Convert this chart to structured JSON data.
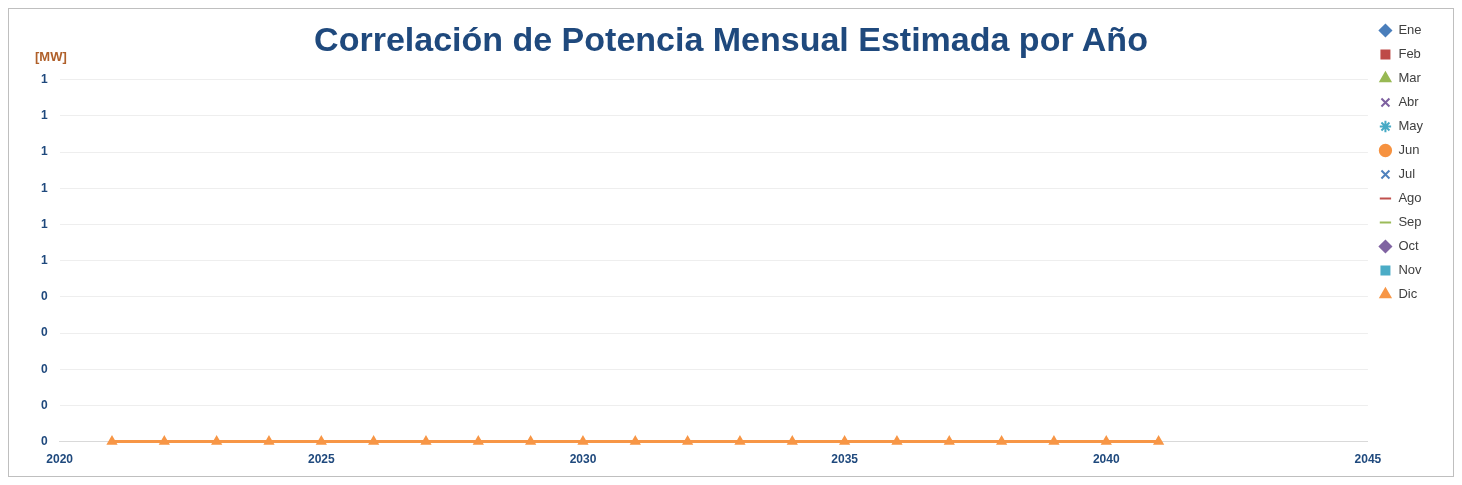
{
  "chart_data": {
    "type": "line",
    "title": "Correlación de Potencia Mensual Estimada por Año",
    "ylabel": "[MW]",
    "x": [
      2021,
      2022,
      2023,
      2024,
      2025,
      2026,
      2027,
      2028,
      2029,
      2030,
      2031,
      2032,
      2033,
      2034,
      2035,
      2036,
      2037,
      2038,
      2039,
      2040,
      2041
    ],
    "xlim": [
      2020,
      2045
    ],
    "xticks": [
      2020,
      2025,
      2030,
      2035,
      2040,
      2045
    ],
    "ylim": [
      0,
      1
    ],
    "yticks": [
      {
        "value": 0,
        "label": "0"
      },
      {
        "value": 0.1,
        "label": "0"
      },
      {
        "value": 0.2,
        "label": "0"
      },
      {
        "value": 0.3,
        "label": "0"
      },
      {
        "value": 0.4,
        "label": "0"
      },
      {
        "value": 0.5,
        "label": "1"
      },
      {
        "value": 0.6,
        "label": "1"
      },
      {
        "value": 0.7,
        "label": "1"
      },
      {
        "value": 0.8,
        "label": "1"
      },
      {
        "value": 0.9,
        "label": "1"
      },
      {
        "value": 1,
        "label": "1"
      }
    ],
    "grid": "y",
    "legend": "right",
    "line_style": "solid",
    "series": [
      {
        "name": "Ene",
        "color": "#4a7ebb",
        "marker": "diamond",
        "values": [
          null,
          null,
          null,
          null,
          null,
          null,
          null,
          null,
          null,
          null,
          null,
          null,
          null,
          null,
          null,
          null,
          null,
          null,
          null,
          null,
          null
        ]
      },
      {
        "name": "Feb",
        "color": "#be4b48",
        "marker": "square",
        "values": [
          null,
          null,
          null,
          null,
          null,
          null,
          null,
          null,
          null,
          null,
          null,
          null,
          null,
          null,
          null,
          null,
          null,
          null,
          null,
          null,
          null
        ]
      },
      {
        "name": "Mar",
        "color": "#98b954",
        "marker": "triangle",
        "values": [
          null,
          null,
          null,
          null,
          null,
          null,
          null,
          null,
          null,
          null,
          null,
          null,
          null,
          null,
          null,
          null,
          null,
          null,
          null,
          null,
          null
        ]
      },
      {
        "name": "Abr",
        "color": "#7d60a0",
        "marker": "cross",
        "values": [
          null,
          null,
          null,
          null,
          null,
          null,
          null,
          null,
          null,
          null,
          null,
          null,
          null,
          null,
          null,
          null,
          null,
          null,
          null,
          null,
          null
        ]
      },
      {
        "name": "May",
        "color": "#46aac5",
        "marker": "star",
        "values": [
          null,
          null,
          null,
          null,
          null,
          null,
          null,
          null,
          null,
          null,
          null,
          null,
          null,
          null,
          null,
          null,
          null,
          null,
          null,
          null,
          null
        ]
      },
      {
        "name": "Jun",
        "color": "#f69240",
        "marker": "circle",
        "values": [
          null,
          null,
          null,
          null,
          null,
          null,
          null,
          null,
          null,
          null,
          null,
          null,
          null,
          null,
          null,
          null,
          null,
          null,
          null,
          null,
          null
        ]
      },
      {
        "name": "Jul",
        "color": "#4f81bd",
        "marker": "cross",
        "values": [
          null,
          null,
          null,
          null,
          null,
          null,
          null,
          null,
          null,
          null,
          null,
          null,
          null,
          null,
          null,
          null,
          null,
          null,
          null,
          null,
          null
        ]
      },
      {
        "name": "Ago",
        "color": "#c0504d",
        "marker": "none",
        "values": [
          null,
          null,
          null,
          null,
          null,
          null,
          null,
          null,
          null,
          null,
          null,
          null,
          null,
          null,
          null,
          null,
          null,
          null,
          null,
          null,
          null
        ]
      },
      {
        "name": "Sep",
        "color": "#9bbb59",
        "marker": "none",
        "values": [
          null,
          null,
          null,
          null,
          null,
          null,
          null,
          null,
          null,
          null,
          null,
          null,
          null,
          null,
          null,
          null,
          null,
          null,
          null,
          null,
          null
        ]
      },
      {
        "name": "Oct",
        "color": "#8064a2",
        "marker": "diamond",
        "values": [
          null,
          null,
          null,
          null,
          null,
          null,
          null,
          null,
          null,
          null,
          null,
          null,
          null,
          null,
          null,
          null,
          null,
          null,
          null,
          null,
          null
        ]
      },
      {
        "name": "Nov",
        "color": "#4bacc6",
        "marker": "square",
        "values": [
          null,
          null,
          null,
          null,
          null,
          null,
          null,
          null,
          null,
          null,
          null,
          null,
          null,
          null,
          null,
          null,
          null,
          null,
          null,
          null,
          null
        ]
      },
      {
        "name": "Dic",
        "color": "#f79646",
        "marker": "triangle",
        "values": [
          0,
          0,
          0,
          0,
          0,
          0,
          0,
          0,
          0,
          0,
          0,
          0,
          0,
          0,
          0,
          0,
          0,
          0,
          0,
          0,
          0
        ]
      }
    ]
  }
}
